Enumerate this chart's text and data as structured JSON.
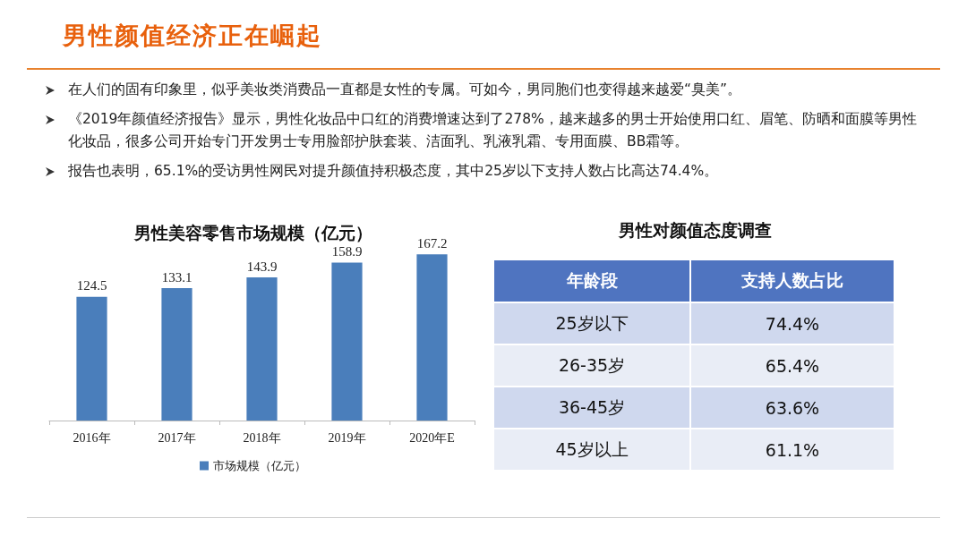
{
  "chart_data": [
    {
      "type": "other",
      "title": "男性颜值经济正在崛起",
      "annotations": [
        "在人们的固有印象里，似乎美妆类消费品一直都是女性的专属。可如今，男同胞们也变得越来越爱“臭美”。",
        "《2019年颜值经济报告》显示，男性化妆品中口红的消费增速达到了278%，越来越多的男士开始使用口红、眉笔、防晒和面膜等男性化妆品，很多公司开始专门开发男士专用脸部护肤套装、洁面乳、乳液乳霜、专用面膜、BB霜等。",
        "报告也表明，65.1%的受访男性网民对提升颜值持积极态度，其中25岁以下支持人数占比高达74.4%。"
      ]
    },
    {
      "type": "bar",
      "title": "男性美容零售市场规模（亿元）",
      "categories": [
        "2016年",
        "2017年",
        "2018年",
        "2019年",
        "2020年E"
      ],
      "series": [
        {
          "name": "市场规模（亿元）",
          "color": "#4a7ebb",
          "values": [
            124.5,
            133.1,
            143.9,
            158.9,
            167.2
          ]
        }
      ],
      "data_labels": true,
      "legend": "bottom",
      "tick_labels": "x"
    },
    {
      "type": "other",
      "title": "男性对颜值态度调查",
      "xlabel": "年龄段",
      "ylabel": "支持人数占比",
      "categories": [
        "25岁以下",
        "26-35岁",
        "36-45岁",
        "45岁以上"
      ],
      "value_labels": [
        "74.4%",
        "65.4%",
        "63.6%",
        "61.1%"
      ]
    }
  ]
}
